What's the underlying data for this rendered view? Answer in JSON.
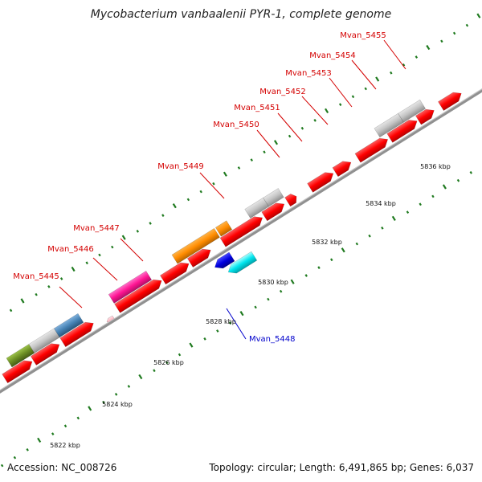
{
  "title": "Mycobacterium vanbaalenii PYR-1, complete genome",
  "footer": {
    "accession": "Accession: NC_008726",
    "info": "Topology: circular; Length: 6,491,865 bp; Genes: 6,037"
  },
  "scale": {
    "ticks": [
      {
        "label": "5822 kbp"
      },
      {
        "label": "5824 kbp"
      },
      {
        "label": "5826 kbp"
      },
      {
        "label": "5828 kbp"
      },
      {
        "label": "5830 kbp"
      },
      {
        "label": "5832 kbp"
      },
      {
        "label": "5834 kbp"
      },
      {
        "label": "5836 kbp"
      }
    ]
  },
  "gene_labels": [
    {
      "name": "Mvan_5445",
      "color": "#d40000"
    },
    {
      "name": "Mvan_5446",
      "color": "#d40000"
    },
    {
      "name": "Mvan_5447",
      "color": "#d40000"
    },
    {
      "name": "Mvan_5448",
      "color": "#0000cc"
    },
    {
      "name": "Mvan_5449",
      "color": "#d40000"
    },
    {
      "name": "Mvan_5450",
      "color": "#d40000"
    },
    {
      "name": "Mvan_5451",
      "color": "#d40000"
    },
    {
      "name": "Mvan_5452",
      "color": "#d40000"
    },
    {
      "name": "Mvan_5453",
      "color": "#d40000"
    },
    {
      "name": "Mvan_5454",
      "color": "#d40000"
    },
    {
      "name": "Mvan_5455",
      "color": "#d40000"
    }
  ],
  "colors": {
    "cds": "#ff0000",
    "pseudo_gray": "#c0c0c0",
    "orange": "#ff8c00",
    "magenta": "#ff1493",
    "steelblue": "#4682b4",
    "blue": "#0000e0",
    "cyan": "#00e5ee",
    "olive": "#6b8e23",
    "pink": "#ffb6c1",
    "tick_green": "#1a7a1a",
    "backbone": "#808080"
  }
}
